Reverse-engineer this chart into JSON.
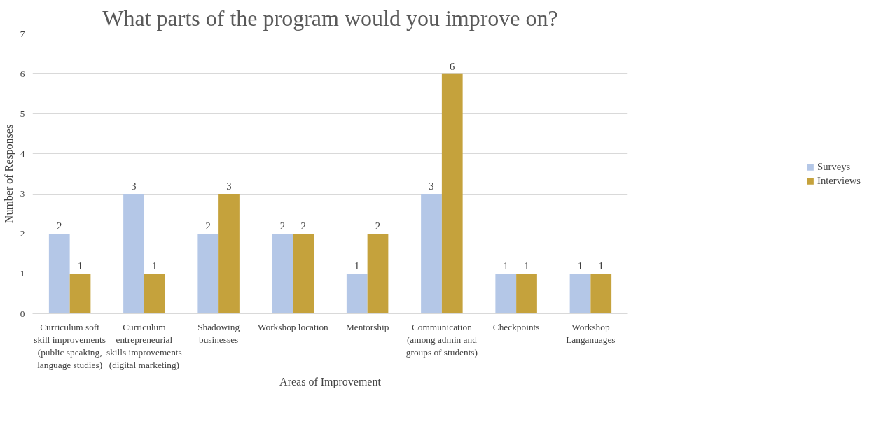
{
  "chart_data": {
    "type": "bar",
    "title": "What parts of the program would you improve on?",
    "xlabel": "Areas of Improvement",
    "ylabel": "Number of Responses",
    "categories": [
      "Curriculum soft skill improvements (public speaking, language studies)",
      "Curriculum entrepreneurial skills improvements (digital marketing)",
      "Shadowing businesses",
      "Workshop location",
      "Mentorship",
      "Communication (among admin and groups of students)",
      "Checkpoints",
      "Workshop Langanuages"
    ],
    "series": [
      {
        "name": "Surveys",
        "color": "#b4c7e7",
        "values": [
          2,
          3,
          2,
          2,
          1,
          3,
          1,
          1
        ]
      },
      {
        "name": "Interviews",
        "color": "#c5a23c",
        "values": [
          1,
          1,
          3,
          2,
          2,
          6,
          1,
          1
        ]
      }
    ],
    "ylim": [
      0,
      7
    ],
    "yticks": [
      0,
      1,
      2,
      3,
      4,
      5,
      6,
      7
    ],
    "grid": "y",
    "legend": "right",
    "data_labels": true
  }
}
